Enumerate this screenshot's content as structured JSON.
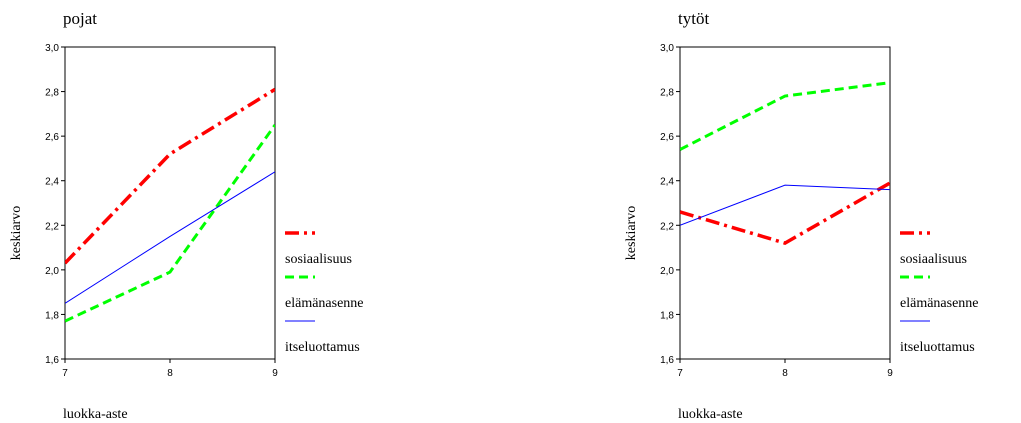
{
  "chart_data": [
    {
      "type": "line",
      "title": "pojat",
      "xlabel": "luokka-aste",
      "ylabel": "keskiarvo",
      "categories": [
        "7",
        "8",
        "9"
      ],
      "ylim": [
        1.6,
        3.0
      ],
      "yticks": [
        "1,6",
        "1,8",
        "2,0",
        "2,2",
        "2,4",
        "2,6",
        "2,8",
        "3,0"
      ],
      "series": [
        {
          "name": "sosiaalisuus",
          "values": [
            2.03,
            2.52,
            2.81
          ],
          "color": "#ff0000",
          "dash": "dashdot"
        },
        {
          "name": "elämänasenne",
          "values": [
            1.77,
            1.99,
            2.65
          ],
          "color": "#00ff00",
          "dash": "dash"
        },
        {
          "name": "itseluottamus",
          "values": [
            1.85,
            2.15,
            2.44
          ],
          "color": "#0000ff",
          "dash": "solid"
        }
      ],
      "legend": "right"
    },
    {
      "type": "line",
      "title": "tytöt",
      "xlabel": "luokka-aste",
      "ylabel": "keskiarvo",
      "categories": [
        "7",
        "8",
        "9"
      ],
      "ylim": [
        1.6,
        3.0
      ],
      "yticks": [
        "1,6",
        "1,8",
        "2,0",
        "2,2",
        "2,4",
        "2,6",
        "2,8",
        "3,0"
      ],
      "series": [
        {
          "name": "sosiaalisuus",
          "values": [
            2.26,
            2.12,
            2.39
          ],
          "color": "#ff0000",
          "dash": "dashdot"
        },
        {
          "name": "elämänasenne",
          "values": [
            2.54,
            2.78,
            2.84
          ],
          "color": "#00ff00",
          "dash": "dash"
        },
        {
          "name": "itseluottamus",
          "values": [
            2.2,
            2.38,
            2.36
          ],
          "color": "#0000ff",
          "dash": "solid"
        }
      ],
      "legend": "right"
    }
  ]
}
